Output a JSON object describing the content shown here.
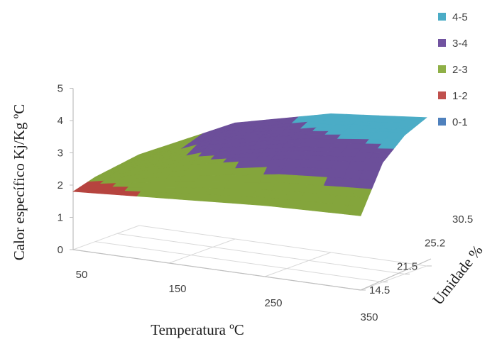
{
  "chart_data": {
    "type": "surface",
    "xlabel": "Temperatura ºC",
    "ylabel": "Calor específico Kj/Kg ºC",
    "zlabel": "Umidade %",
    "x": [
      50,
      150,
      250,
      350
    ],
    "x_tick_labels": [
      "50",
      "150",
      "250",
      "350"
    ],
    "depth": [
      14.5,
      21.5,
      25.2,
      30.5
    ],
    "depth_tick_labels": [
      "14.5",
      "21.5",
      "25.2",
      "30.5"
    ],
    "y_tick_labels": [
      "0",
      "1",
      "2",
      "3",
      "4",
      "5"
    ],
    "ylim": [
      0,
      5
    ],
    "surface": {
      "rows_by_depth": [
        {
          "depth": "14.5",
          "values": [
            1.8,
            2.0,
            2.2,
            2.3
          ]
        },
        {
          "depth": "21.5",
          "values": [
            2.0,
            2.8,
            3.4,
            3.7
          ]
        },
        {
          "depth": "25.2",
          "values": [
            2.1,
            3.3,
            3.9,
            4.3
          ]
        },
        {
          "depth": "30.5",
          "values": [
            2.2,
            3.6,
            4.3,
            4.6
          ]
        }
      ]
    },
    "legend": {
      "position": "right",
      "entries": [
        {
          "label": "4-5",
          "color": "#4bacc6"
        },
        {
          "label": "3-4",
          "color": "#7153a0"
        },
        {
          "label": "2-3",
          "color": "#8fb047"
        },
        {
          "label": "1-2",
          "color": "#c0504d"
        },
        {
          "label": "0-1",
          "color": "#4f81bd"
        }
      ]
    },
    "colors": {
      "top_band": "#4bacc6",
      "band_3_4": "#6c4f9a",
      "band_2_3": "#84a53c",
      "band_1_2": "#b6443f",
      "gridline": "#d9d9d9",
      "axis": "#bfbfbf"
    }
  }
}
